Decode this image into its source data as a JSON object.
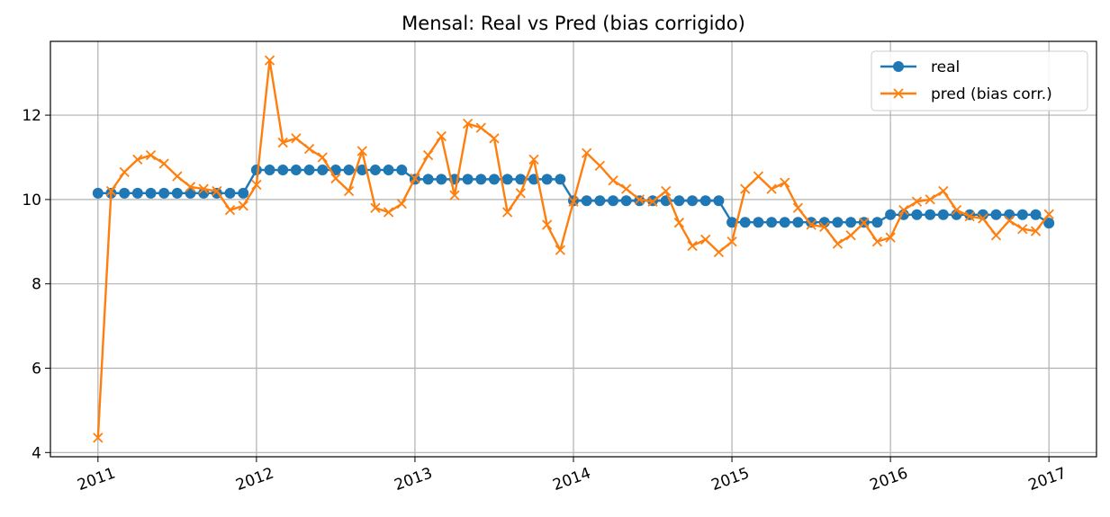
{
  "chart_data": {
    "type": "line",
    "title": "Mensal: Real vs Pred (bias corrigido)",
    "xlabel": "",
    "ylabel": "",
    "x_axis": {
      "ticks": [
        "2011",
        "2012",
        "2013",
        "2014",
        "2015",
        "2016",
        "2017"
      ],
      "range_years": [
        2010.7,
        2017.3
      ]
    },
    "y_axis": {
      "ticks": [
        4,
        6,
        8,
        10,
        12
      ],
      "ylim": [
        3.9,
        13.75
      ]
    },
    "grid": true,
    "legend_position": "top-right",
    "x": [
      "2011-01",
      "2011-02",
      "2011-03",
      "2011-04",
      "2011-05",
      "2011-06",
      "2011-07",
      "2011-08",
      "2011-09",
      "2011-10",
      "2011-11",
      "2011-12",
      "2012-01",
      "2012-02",
      "2012-03",
      "2012-04",
      "2012-05",
      "2012-06",
      "2012-07",
      "2012-08",
      "2012-09",
      "2012-10",
      "2012-11",
      "2012-12",
      "2013-01",
      "2013-02",
      "2013-03",
      "2013-04",
      "2013-05",
      "2013-06",
      "2013-07",
      "2013-08",
      "2013-09",
      "2013-10",
      "2013-11",
      "2013-12",
      "2014-01",
      "2014-02",
      "2014-03",
      "2014-04",
      "2014-05",
      "2014-06",
      "2014-07",
      "2014-08",
      "2014-09",
      "2014-10",
      "2014-11",
      "2014-12",
      "2015-01",
      "2015-02",
      "2015-03",
      "2015-04",
      "2015-05",
      "2015-06",
      "2015-07",
      "2015-08",
      "2015-09",
      "2015-10",
      "2015-11",
      "2015-12",
      "2016-01",
      "2016-02",
      "2016-03",
      "2016-04",
      "2016-05",
      "2016-06",
      "2016-07",
      "2016-08",
      "2016-09",
      "2016-10",
      "2016-11",
      "2016-12",
      "2017-01"
    ],
    "series": [
      {
        "name": "real",
        "color": "#1f77b4",
        "marker": "circle",
        "values": [
          10.15,
          10.15,
          10.15,
          10.15,
          10.15,
          10.15,
          10.15,
          10.15,
          10.15,
          10.15,
          10.15,
          10.15,
          10.7,
          10.7,
          10.7,
          10.7,
          10.7,
          10.7,
          10.7,
          10.7,
          10.7,
          10.7,
          10.7,
          10.7,
          10.48,
          10.48,
          10.48,
          10.48,
          10.48,
          10.48,
          10.48,
          10.48,
          10.48,
          10.48,
          10.48,
          10.48,
          9.97,
          9.97,
          9.97,
          9.97,
          9.97,
          9.97,
          9.97,
          9.97,
          9.97,
          9.97,
          9.97,
          9.97,
          9.46,
          9.46,
          9.46,
          9.46,
          9.46,
          9.46,
          9.46,
          9.46,
          9.46,
          9.46,
          9.46,
          9.46,
          9.64,
          9.64,
          9.64,
          9.64,
          9.64,
          9.64,
          9.64,
          9.64,
          9.64,
          9.64,
          9.64,
          9.64,
          9.44
        ]
      },
      {
        "name": "pred (bias corr.)",
        "color": "#ff7f0e",
        "marker": "x",
        "values": [
          4.35,
          10.2,
          10.65,
          10.95,
          11.05,
          10.85,
          10.55,
          10.3,
          10.25,
          10.2,
          9.75,
          9.85,
          10.35,
          13.3,
          11.35,
          11.45,
          11.2,
          11.0,
          10.5,
          10.2,
          11.15,
          9.8,
          9.7,
          9.9,
          10.5,
          11.05,
          11.5,
          10.1,
          11.8,
          11.7,
          11.45,
          9.7,
          10.15,
          10.95,
          9.4,
          8.8,
          9.95,
          11.1,
          10.8,
          10.45,
          10.25,
          10.0,
          9.95,
          10.2,
          9.45,
          8.9,
          9.05,
          8.75,
          9.0,
          10.25,
          10.55,
          10.25,
          10.4,
          9.8,
          9.4,
          9.35,
          8.95,
          9.15,
          9.45,
          9.0,
          9.1,
          9.75,
          9.95,
          10.0,
          10.2,
          9.75,
          9.6,
          9.55,
          9.15,
          9.5,
          9.3,
          9.25,
          9.65
        ]
      }
    ]
  }
}
